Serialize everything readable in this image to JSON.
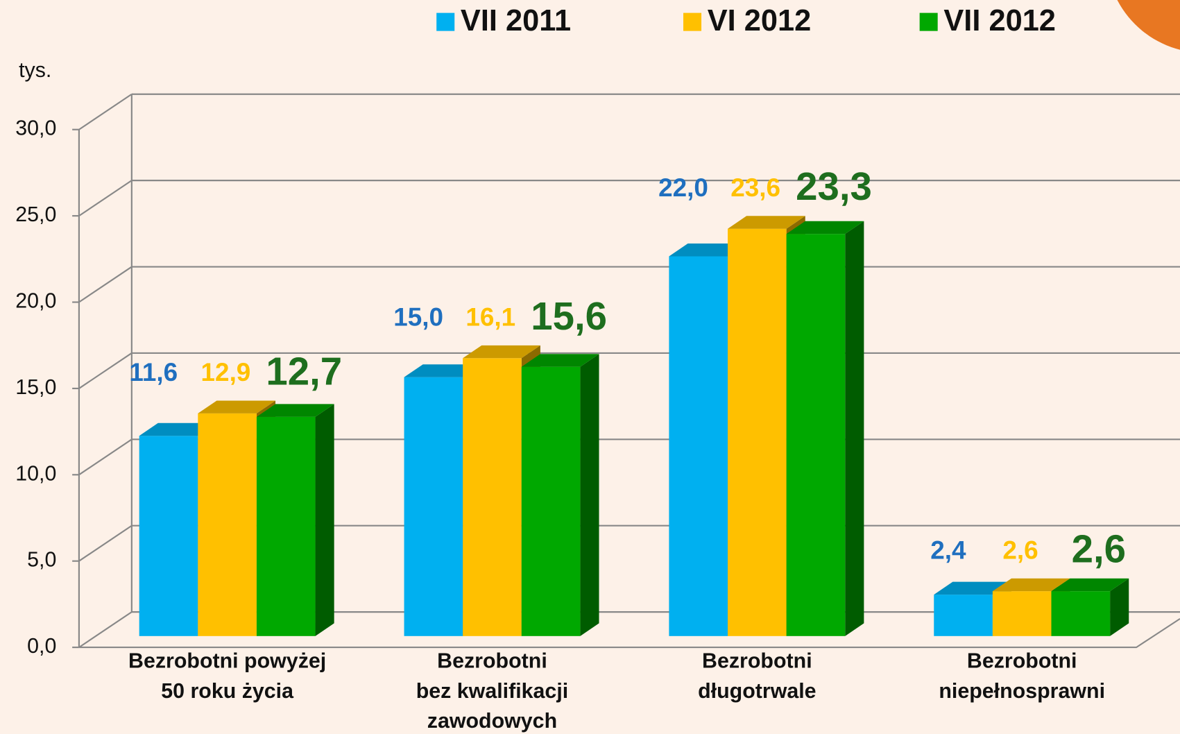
{
  "chart_data": {
    "type": "bar3d",
    "ylabel": "tys.",
    "categories": [
      "Bezrobotni powyżej\n50 roku życia",
      "Bezrobotni\nbez kwalifikacji\nzawodowych",
      "Bezrobotni\ndługotrwale",
      "Bezrobotni\nniepełnosprawni"
    ],
    "series": [
      {
        "name": "VII 2011",
        "color": "#00b0f0",
        "label_color": "#1f6fbf",
        "values": [
          11.6,
          15.0,
          22.0,
          2.4
        ],
        "value_labels": [
          "11,6",
          "15,0",
          "22,0",
          "2,4"
        ]
      },
      {
        "name": "VI 2012",
        "color": "#ffc000",
        "label_color": "#ffc000",
        "values": [
          12.9,
          16.1,
          23.6,
          2.6
        ],
        "value_labels": [
          "12,9",
          "16,1",
          "23,6",
          "2,6"
        ]
      },
      {
        "name": "VII 2012",
        "color": "#00a800",
        "label_color": "#1e6e1e",
        "values": [
          12.7,
          15.6,
          23.3,
          2.6
        ],
        "value_labels": [
          "12,7",
          "15,6",
          "23,3",
          "2,6"
        ]
      }
    ],
    "ylim": [
      0,
      30
    ],
    "yticks": [
      {
        "value": 0,
        "label": "0,0"
      },
      {
        "value": 5,
        "label": "5,0"
      },
      {
        "value": 10,
        "label": "10,0"
      },
      {
        "value": 15,
        "label": "15,0"
      },
      {
        "value": 20,
        "label": "20,0"
      },
      {
        "value": 25,
        "label": "25,0"
      },
      {
        "value": 30,
        "label": "30,0"
      }
    ],
    "grid": true,
    "legend": "top"
  }
}
